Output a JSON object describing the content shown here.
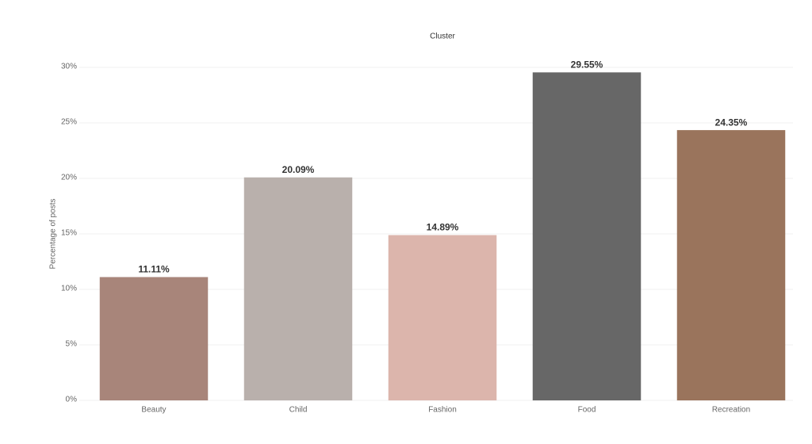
{
  "chart_data": {
    "type": "bar",
    "title": "Cluster",
    "y_label": "Percentage of posts",
    "categories": [
      "Beauty",
      "Child",
      "Fashion",
      "Food",
      "Recreation"
    ],
    "values": [
      11.11,
      20.09,
      14.89,
      29.55,
      24.35
    ],
    "value_labels": [
      "11.11%",
      "20.09%",
      "14.89%",
      "29.55%",
      "24.35%"
    ],
    "colors": [
      "#a8857a",
      "#b9b0ac",
      "#dcb5ac",
      "#676767",
      "#9a745c"
    ],
    "ylim": [
      0,
      30
    ],
    "yticks": [
      {
        "value": 0,
        "label": "0%"
      },
      {
        "value": 5,
        "label": "5%"
      },
      {
        "value": 10,
        "label": "10%"
      },
      {
        "value": 15,
        "label": "15%"
      },
      {
        "value": 20,
        "label": "20%"
      },
      {
        "value": 25,
        "label": "25%"
      },
      {
        "value": 30,
        "label": "30%"
      }
    ],
    "grid": true
  }
}
